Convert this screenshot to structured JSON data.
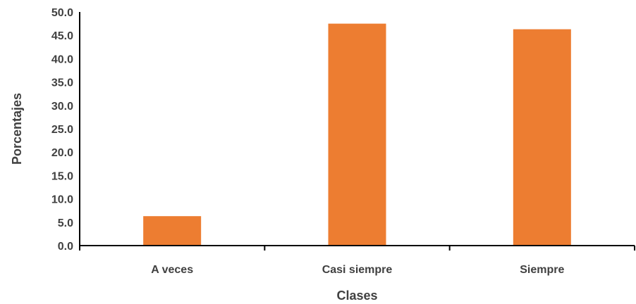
{
  "chart_data": {
    "type": "bar",
    "title": "",
    "xlabel": "Clases",
    "ylabel": "Porcentajes",
    "categories": [
      "A veces",
      "Casi siempre",
      "Siempre"
    ],
    "values": [
      6.3,
      47.5,
      46.3
    ],
    "ylim": [
      0,
      50
    ],
    "ytick_values": [
      0,
      5,
      10,
      15,
      20,
      25,
      30,
      35,
      40,
      45,
      50
    ],
    "yticks": [
      "0.0",
      "5.0",
      "10.0",
      "15.0",
      "20.0",
      "25.0",
      "30.0",
      "35.0",
      "40.0",
      "45.0",
      "50.0"
    ],
    "grid": false,
    "legend": "none",
    "colors": {
      "bar": "#ED7D31",
      "axis": "#000000",
      "text": "#404040"
    }
  }
}
